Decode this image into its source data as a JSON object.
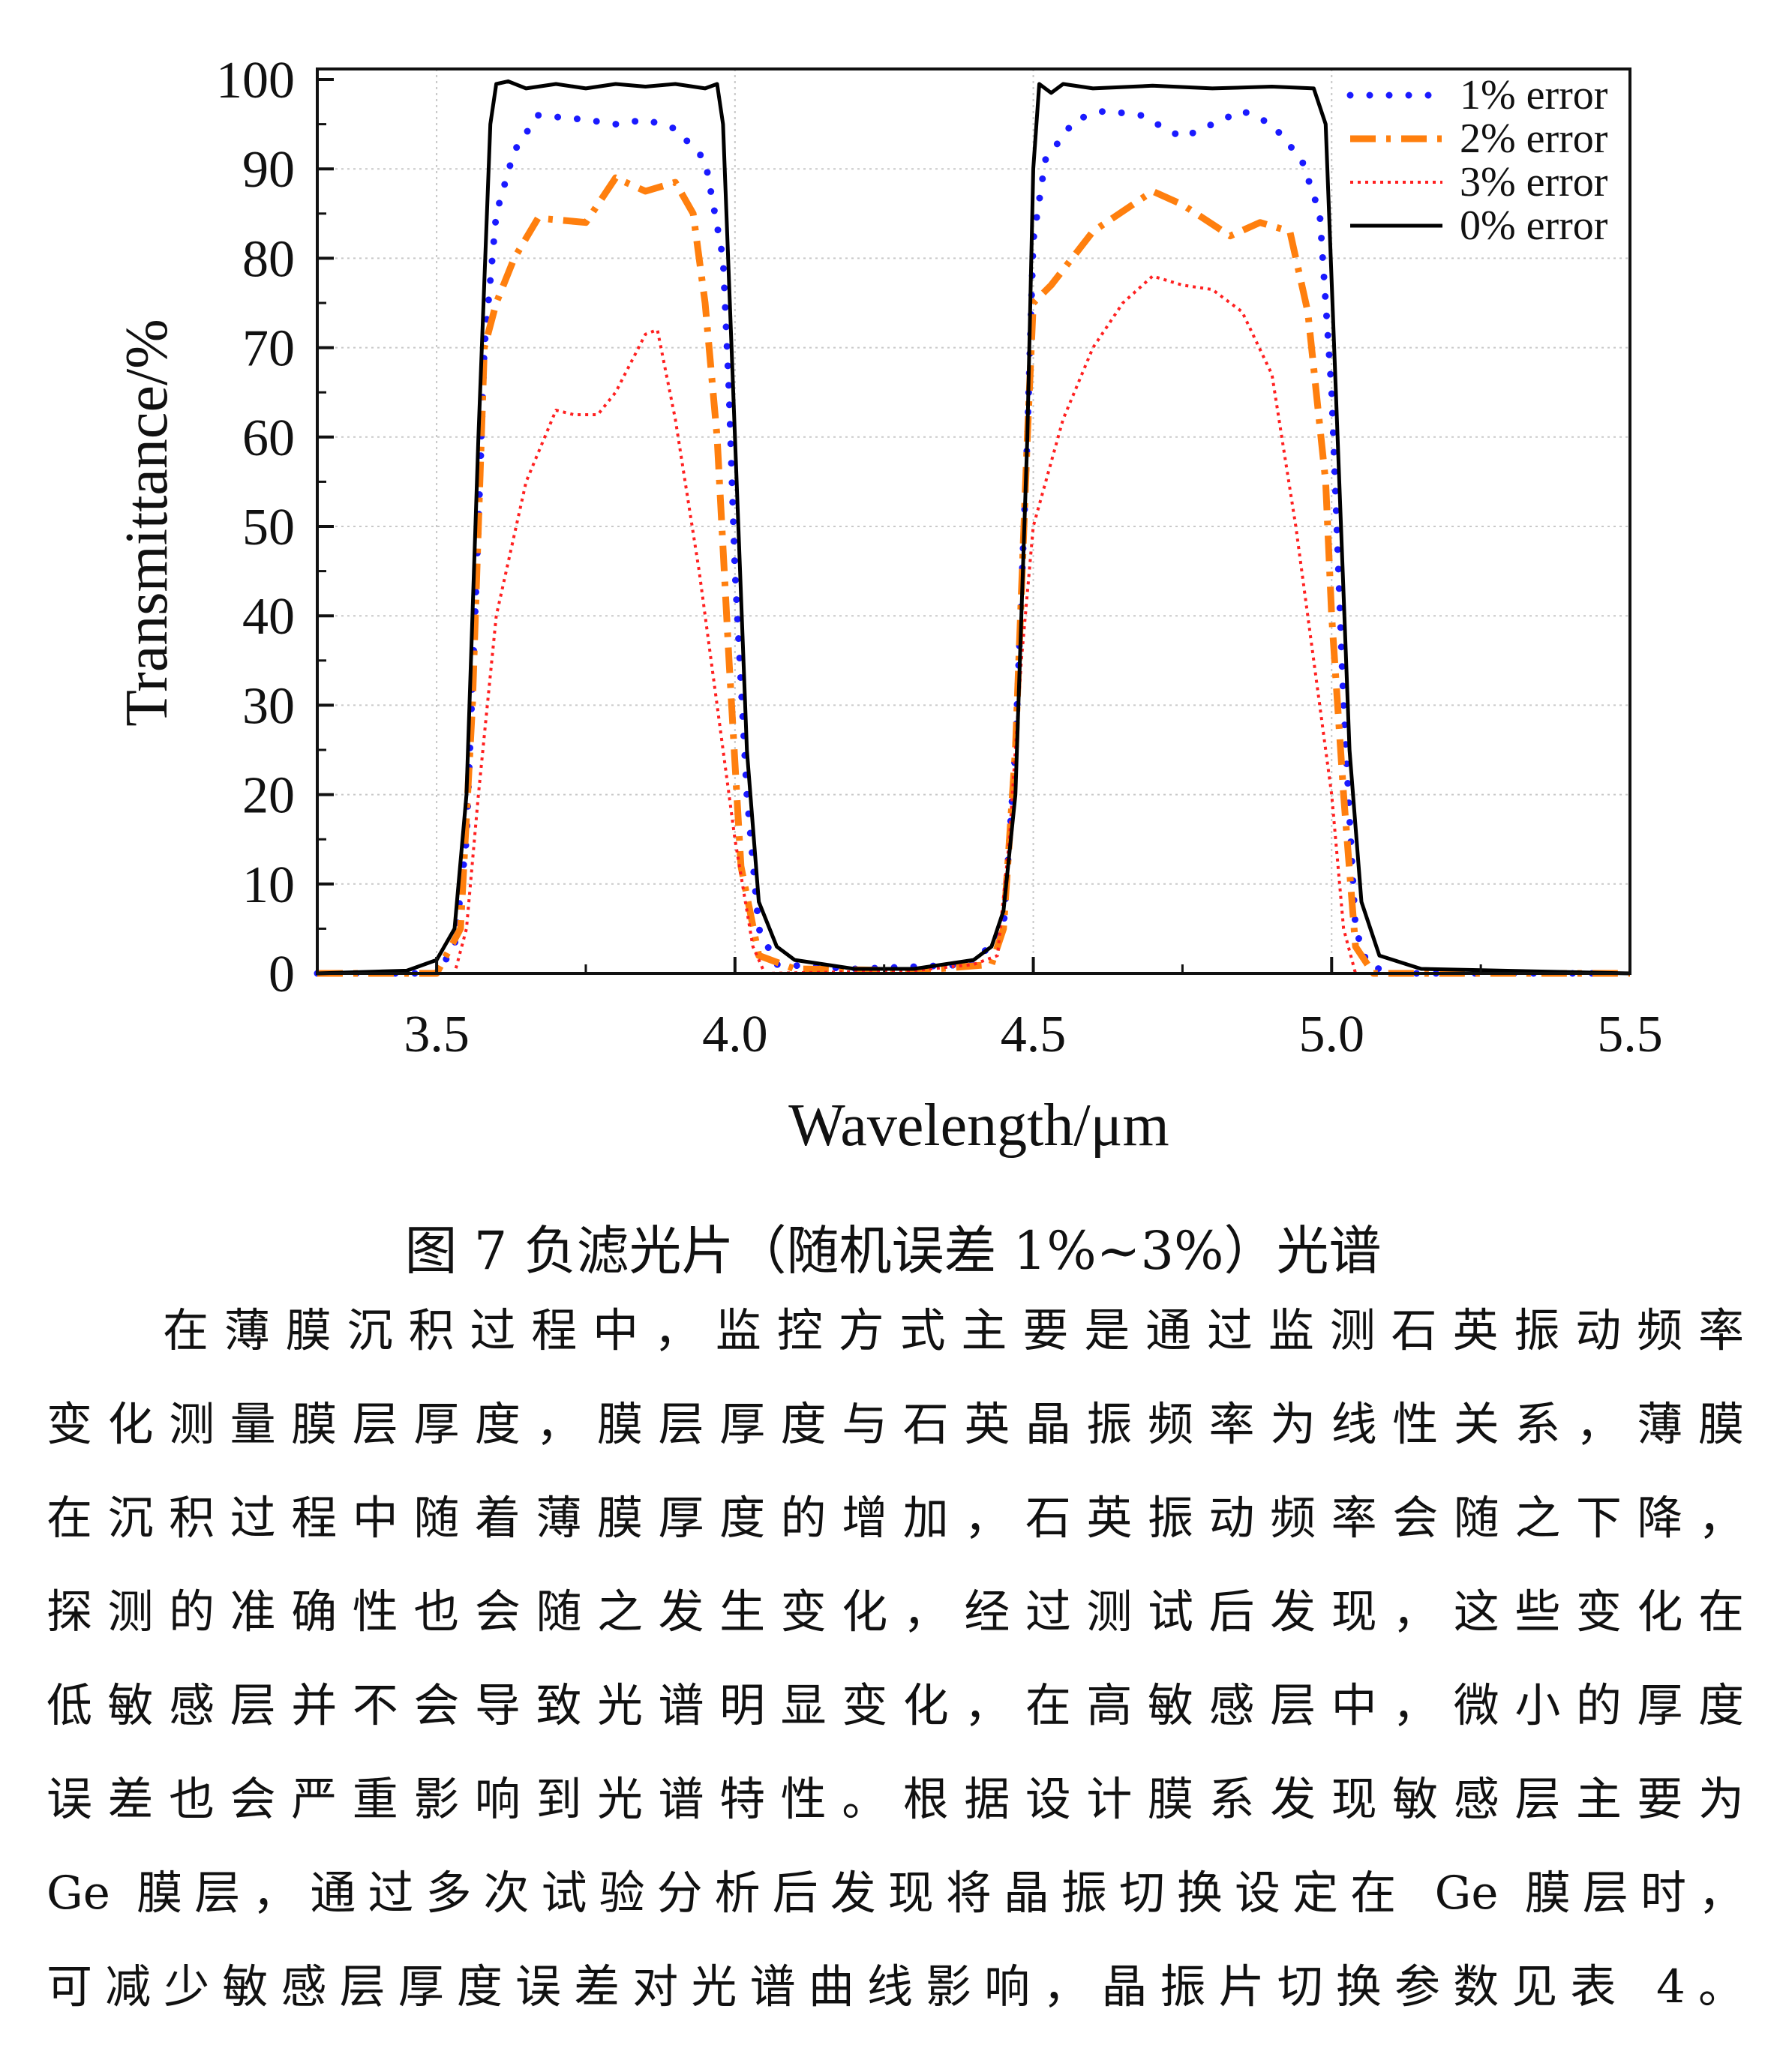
{
  "chart_data": {
    "type": "line",
    "xlabel": "Wavelength/μm",
    "ylabel": "Transmittance/%",
    "xlim": [
      3.3,
      5.5
    ],
    "ylim": [
      0,
      100
    ],
    "xticks": [
      "3.5",
      "4.0",
      "4.5",
      "5.0",
      "5.5"
    ],
    "yticks": [
      "0",
      "10",
      "20",
      "30",
      "40",
      "50",
      "60",
      "70",
      "80",
      "90",
      "100"
    ],
    "grid": true,
    "legend_position": "top-right",
    "series": [
      {
        "name": "1% error",
        "color": "#1a1aff",
        "style": "dotted",
        "x": [
          3.3,
          3.5,
          3.53,
          3.55,
          3.57,
          3.58,
          3.6,
          3.63,
          3.67,
          3.75,
          3.8,
          3.85,
          3.9,
          3.95,
          3.98,
          3.99,
          4.0,
          4.02,
          4.04,
          4.07,
          4.2,
          4.4,
          4.45,
          4.47,
          4.49,
          4.5,
          4.52,
          4.57,
          4.62,
          4.68,
          4.75,
          4.8,
          4.85,
          4.9,
          4.95,
          4.98,
          5.0,
          5.02,
          5.04,
          5.06,
          5.1,
          5.5
        ],
        "y": [
          0,
          0,
          3,
          15,
          50,
          70,
          85,
          92,
          96,
          95.5,
          95,
          95.5,
          94.5,
          91,
          80,
          65,
          45,
          20,
          5,
          1,
          0.5,
          1,
          5,
          25,
          60,
          82,
          91,
          95.5,
          96.5,
          96,
          93.5,
          95,
          96.5,
          95,
          91,
          85,
          65,
          30,
          5,
          1,
          0,
          0
        ]
      },
      {
        "name": "2% error",
        "color": "#ff7f0e",
        "style": "dashdot",
        "x": [
          3.3,
          3.5,
          3.54,
          3.56,
          3.58,
          3.6,
          3.63,
          3.67,
          3.75,
          3.8,
          3.85,
          3.9,
          3.93,
          3.95,
          3.97,
          3.99,
          4.01,
          4.04,
          4.1,
          4.3,
          4.43,
          4.45,
          4.47,
          4.49,
          4.5,
          4.53,
          4.6,
          4.7,
          4.75,
          4.83,
          4.88,
          4.93,
          4.96,
          4.99,
          5.0,
          5.02,
          5.04,
          5.07,
          5.5
        ],
        "y": [
          0,
          0,
          5,
          30,
          70,
          75,
          80,
          84.5,
          84,
          89,
          87.5,
          88.5,
          85,
          75,
          60,
          35,
          12,
          2,
          0.5,
          0.3,
          1,
          5,
          25,
          60,
          75,
          77,
          83,
          87.5,
          86,
          82.5,
          84,
          83,
          74,
          55,
          40,
          20,
          3,
          0,
          0
        ]
      },
      {
        "name": "3% error",
        "color": "#ff2020",
        "style": "fine-dotted",
        "x": [
          3.3,
          3.53,
          3.55,
          3.57,
          3.6,
          3.65,
          3.7,
          3.73,
          3.77,
          3.8,
          3.85,
          3.87,
          3.9,
          3.94,
          3.97,
          4.0,
          4.03,
          4.05,
          4.3,
          4.4,
          4.44,
          4.46,
          4.48,
          4.5,
          4.55,
          4.6,
          4.65,
          4.7,
          4.75,
          4.8,
          4.85,
          4.9,
          4.94,
          4.97,
          5.0,
          5.02,
          5.04,
          5.5
        ],
        "y": [
          0,
          0,
          5,
          20,
          40,
          55,
          63,
          62.5,
          62.5,
          65,
          71.5,
          72,
          62,
          45,
          30,
          15,
          3,
          0,
          0.3,
          1,
          2,
          15,
          35,
          50,
          62,
          70,
          75,
          78,
          77,
          76.5,
          74,
          67,
          50,
          35,
          20,
          5,
          0,
          0
        ]
      },
      {
        "name": "0% error",
        "color": "#000000",
        "style": "solid",
        "x": [
          3.3,
          3.45,
          3.5,
          3.53,
          3.55,
          3.57,
          3.59,
          3.6,
          3.62,
          3.65,
          3.7,
          3.75,
          3.8,
          3.85,
          3.9,
          3.95,
          3.97,
          3.98,
          4.0,
          4.02,
          4.04,
          4.07,
          4.1,
          4.2,
          4.3,
          4.4,
          4.43,
          4.45,
          4.47,
          4.49,
          4.5,
          4.51,
          4.53,
          4.55,
          4.6,
          4.7,
          4.8,
          4.9,
          4.97,
          4.99,
          5.01,
          5.03,
          5.05,
          5.08,
          5.15,
          5.5
        ],
        "y": [
          0,
          0.3,
          1.5,
          5,
          20,
          60,
          95,
          99.5,
          99.8,
          99,
          99.5,
          99,
          99.5,
          99.2,
          99.5,
          99,
          99.5,
          95,
          60,
          25,
          8,
          3,
          1.5,
          0.5,
          0.5,
          1.5,
          3,
          7,
          20,
          60,
          90,
          99.5,
          98.5,
          99.5,
          99,
          99.3,
          99,
          99.2,
          99,
          95,
          60,
          25,
          8,
          2,
          0.5,
          0
        ]
      }
    ]
  },
  "caption": "图 7  负滤光片（随机误差 1%~3%）光谱",
  "paragraph": [
    "在薄膜沉积过程中，监控方式主要是通过监测石英振动频率",
    "变化测量膜层厚度，膜层厚度与石英晶振频率为线性关系，薄膜",
    "在沉积过程中随着薄膜厚度的增加，石英振动频率会随之下降，",
    "探测的准确性也会随之发生变化，经过测试后发现，这些变化在",
    "低敏感层并不会导致光谱明显变化，在高敏感层中，微小的厚度",
    "误差也会严重影响到光谱特性。根据设计膜系发现敏感层主要为",
    "Ge 膜层，通过多次试验分析后发现将晶振切换设定在 Ge 膜层时，",
    "可减少敏感层厚度误差对光谱曲线影响，晶振片切换参数见表 4。"
  ]
}
